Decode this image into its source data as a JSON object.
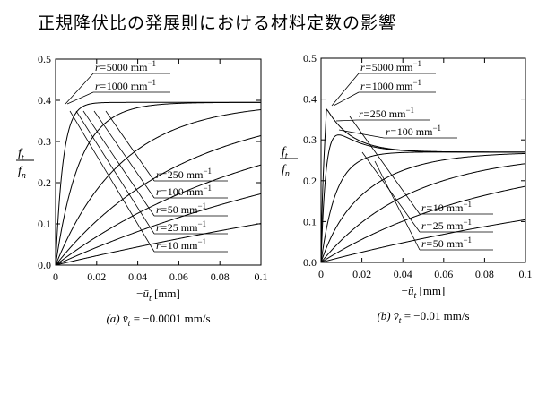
{
  "title": "正規降伏比の発展則における材料定数の影響",
  "chart_data": [
    {
      "type": "line",
      "caption_prefix": "(a)",
      "caption_body": "= −0.0001 mm/s",
      "caption_symbol": "v̄",
      "caption_symbol_sub": "t",
      "ylabel_num": "f",
      "ylabel_num_sub": "t",
      "ylabel_den": "f",
      "ylabel_den_sub": "n",
      "xlabel_prefix": "−",
      "xlabel_symbol": "ū",
      "xlabel_sub": "t",
      "xlabel_unit": "[mm]",
      "xlim": [
        0,
        0.1
      ],
      "ylim": [
        0,
        0.5
      ],
      "x_ticks": [
        "0",
        "0.02",
        "0.04",
        "0.06",
        "0.08",
        "0.1"
      ],
      "y_ticks": [
        "0.0",
        "0.1",
        "0.2",
        "0.3",
        "0.4",
        "0.5"
      ],
      "grid": false,
      "series": [
        {
          "name": "r=5000 mm⁻¹",
          "r": 5000
        },
        {
          "name": "r=1000 mm⁻¹",
          "r": 1000
        },
        {
          "name": "r=250 mm⁻¹",
          "r": 250
        },
        {
          "name": "r=100 mm⁻¹",
          "r": 100
        },
        {
          "name": "r=50 mm⁻¹",
          "r": 50
        },
        {
          "name": "r=25 mm⁻¹",
          "r": 25
        },
        {
          "name": "r=10 mm⁻¹",
          "r": 10
        }
      ],
      "model": {
        "initial_slope": 100,
        "saturation": 0.395,
        "r_exponent": 0.73
      }
    },
    {
      "type": "line",
      "caption_prefix": "(b)",
      "caption_body": "= −0.01 mm/s",
      "caption_symbol": "v̄",
      "caption_symbol_sub": "t",
      "ylabel_num": "f",
      "ylabel_num_sub": "t",
      "ylabel_den": "f",
      "ylabel_den_sub": "n",
      "xlabel_prefix": "−",
      "xlabel_symbol": "ū",
      "xlabel_sub": "t",
      "xlabel_unit": "[mm]",
      "xlim": [
        0,
        0.1
      ],
      "ylim": [
        0,
        0.5
      ],
      "x_ticks": [
        "0",
        "0.02",
        "0.04",
        "0.06",
        "0.08",
        "0.1"
      ],
      "y_ticks": [
        "0.0",
        "0.1",
        "0.2",
        "0.3",
        "0.4",
        "0.5"
      ],
      "grid": false,
      "series": [
        {
          "name": "r=5000 mm⁻¹",
          "r": 5000
        },
        {
          "name": "r=1000 mm⁻¹",
          "r": 1000
        },
        {
          "name": "r=250 mm⁻¹",
          "r": 250
        },
        {
          "name": "r=100 mm⁻¹",
          "r": 100
        },
        {
          "name": "r=10 mm⁻¹",
          "r": 10
        },
        {
          "name": "r=25 mm⁻¹",
          "r": 25
        },
        {
          "name": "r=50 mm⁻¹",
          "r": 50
        }
      ],
      "model": {
        "initial_slope": 100,
        "saturation": 0.27,
        "overshoot": 0.135,
        "decay_length": 0.012,
        "r_exponent": 0.95
      }
    }
  ]
}
